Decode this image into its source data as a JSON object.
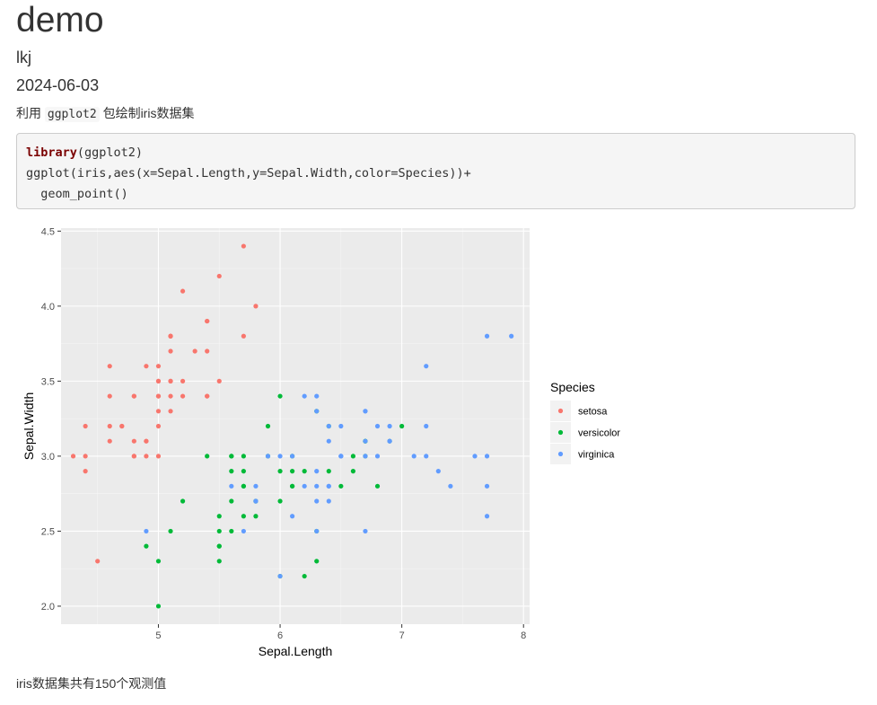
{
  "document": {
    "title": "demo",
    "author": "lkj",
    "date": "2024-06-03",
    "intro_prefix": "利用 ",
    "intro_code": "ggplot2",
    "intro_suffix": " 包绘制iris数据集",
    "code_lines": {
      "line1_keyword": "library",
      "line1_rest": "(ggplot2)",
      "line2": "ggplot(iris,aes(x=Sepal.Length,y=Sepal.Width,color=Species))+",
      "line3": "  geom_point()"
    },
    "outro": "iris数据集共有150个观测值"
  },
  "chart_data": {
    "type": "scatter",
    "title": "",
    "xlabel": "Sepal.Length",
    "ylabel": "Sepal.Width",
    "xlim": [
      4.2,
      8.05
    ],
    "ylim": [
      1.88,
      4.52
    ],
    "x_ticks": [
      5,
      6,
      7,
      8
    ],
    "y_ticks": [
      2.0,
      2.5,
      3.0,
      3.5,
      4.0,
      4.5
    ],
    "x_tick_labels": [
      "5",
      "6",
      "7",
      "8"
    ],
    "y_tick_labels": [
      "2.0",
      "2.5",
      "3.0",
      "3.5",
      "4.0",
      "4.5"
    ],
    "grid": true,
    "legend": {
      "title": "Species",
      "placement": "right"
    },
    "series": [
      {
        "name": "setosa",
        "color": "#F8766D",
        "points": [
          [
            5.1,
            3.5
          ],
          [
            4.9,
            3.0
          ],
          [
            4.7,
            3.2
          ],
          [
            4.6,
            3.1
          ],
          [
            5.0,
            3.6
          ],
          [
            5.4,
            3.9
          ],
          [
            4.6,
            3.4
          ],
          [
            5.0,
            3.4
          ],
          [
            4.4,
            2.9
          ],
          [
            4.9,
            3.1
          ],
          [
            5.4,
            3.7
          ],
          [
            4.8,
            3.4
          ],
          [
            4.8,
            3.0
          ],
          [
            4.3,
            3.0
          ],
          [
            5.8,
            4.0
          ],
          [
            5.7,
            4.4
          ],
          [
            5.4,
            3.9
          ],
          [
            5.1,
            3.5
          ],
          [
            5.7,
            3.8
          ],
          [
            5.1,
            3.8
          ],
          [
            5.4,
            3.4
          ],
          [
            5.1,
            3.7
          ],
          [
            4.6,
            3.6
          ],
          [
            5.1,
            3.3
          ],
          [
            4.8,
            3.4
          ],
          [
            5.0,
            3.0
          ],
          [
            5.0,
            3.4
          ],
          [
            5.2,
            3.5
          ],
          [
            5.2,
            3.4
          ],
          [
            4.7,
            3.2
          ],
          [
            4.8,
            3.1
          ],
          [
            5.4,
            3.4
          ],
          [
            5.2,
            4.1
          ],
          [
            5.5,
            4.2
          ],
          [
            4.9,
            3.1
          ],
          [
            5.0,
            3.2
          ],
          [
            5.5,
            3.5
          ],
          [
            4.9,
            3.6
          ],
          [
            4.4,
            3.0
          ],
          [
            5.1,
            3.4
          ],
          [
            5.0,
            3.5
          ],
          [
            4.5,
            2.3
          ],
          [
            4.4,
            3.2
          ],
          [
            5.0,
            3.5
          ],
          [
            5.1,
            3.8
          ],
          [
            4.8,
            3.0
          ],
          [
            5.1,
            3.8
          ],
          [
            4.6,
            3.2
          ],
          [
            5.3,
            3.7
          ],
          [
            5.0,
            3.3
          ]
        ]
      },
      {
        "name": "versicolor",
        "color": "#00BA38",
        "points": [
          [
            7.0,
            3.2
          ],
          [
            6.4,
            3.2
          ],
          [
            6.9,
            3.1
          ],
          [
            5.5,
            2.3
          ],
          [
            6.5,
            2.8
          ],
          [
            5.7,
            2.8
          ],
          [
            6.3,
            3.3
          ],
          [
            4.9,
            2.4
          ],
          [
            6.6,
            2.9
          ],
          [
            5.2,
            2.7
          ],
          [
            5.0,
            2.0
          ],
          [
            5.9,
            3.0
          ],
          [
            6.0,
            2.2
          ],
          [
            6.1,
            2.9
          ],
          [
            5.6,
            2.9
          ],
          [
            6.7,
            3.1
          ],
          [
            5.6,
            3.0
          ],
          [
            5.8,
            2.7
          ],
          [
            6.2,
            2.2
          ],
          [
            5.6,
            2.5
          ],
          [
            5.9,
            3.2
          ],
          [
            6.1,
            2.8
          ],
          [
            6.3,
            2.5
          ],
          [
            6.1,
            2.8
          ],
          [
            6.4,
            2.9
          ],
          [
            6.6,
            3.0
          ],
          [
            6.8,
            2.8
          ],
          [
            6.7,
            3.0
          ],
          [
            6.0,
            2.9
          ],
          [
            5.7,
            2.6
          ],
          [
            5.5,
            2.4
          ],
          [
            5.5,
            2.4
          ],
          [
            5.8,
            2.7
          ],
          [
            6.0,
            2.7
          ],
          [
            5.4,
            3.0
          ],
          [
            6.0,
            3.4
          ],
          [
            6.7,
            3.1
          ],
          [
            6.3,
            2.3
          ],
          [
            5.6,
            3.0
          ],
          [
            5.5,
            2.5
          ],
          [
            5.5,
            2.6
          ],
          [
            6.1,
            3.0
          ],
          [
            5.8,
            2.6
          ],
          [
            5.0,
            2.3
          ],
          [
            5.6,
            2.7
          ],
          [
            5.7,
            3.0
          ],
          [
            5.7,
            2.9
          ],
          [
            6.2,
            2.9
          ],
          [
            5.1,
            2.5
          ],
          [
            5.7,
            2.8
          ]
        ]
      },
      {
        "name": "virginica",
        "color": "#619CFF",
        "points": [
          [
            6.3,
            3.3
          ],
          [
            5.8,
            2.7
          ],
          [
            7.1,
            3.0
          ],
          [
            6.3,
            2.9
          ],
          [
            6.5,
            3.0
          ],
          [
            7.6,
            3.0
          ],
          [
            4.9,
            2.5
          ],
          [
            7.3,
            2.9
          ],
          [
            6.7,
            2.5
          ],
          [
            7.2,
            3.6
          ],
          [
            6.5,
            3.2
          ],
          [
            6.4,
            2.7
          ],
          [
            6.8,
            3.0
          ],
          [
            5.7,
            2.5
          ],
          [
            5.8,
            2.8
          ],
          [
            6.4,
            3.2
          ],
          [
            6.5,
            3.0
          ],
          [
            7.7,
            3.8
          ],
          [
            7.7,
            2.6
          ],
          [
            6.0,
            2.2
          ],
          [
            6.9,
            3.2
          ],
          [
            5.6,
            2.8
          ],
          [
            7.7,
            2.8
          ],
          [
            6.3,
            2.7
          ],
          [
            6.7,
            3.3
          ],
          [
            7.2,
            3.2
          ],
          [
            6.2,
            2.8
          ],
          [
            6.1,
            3.0
          ],
          [
            6.4,
            2.8
          ],
          [
            7.2,
            3.0
          ],
          [
            7.4,
            2.8
          ],
          [
            7.9,
            3.8
          ],
          [
            6.4,
            2.8
          ],
          [
            6.3,
            2.8
          ],
          [
            6.1,
            2.6
          ],
          [
            7.7,
            3.0
          ],
          [
            6.3,
            3.4
          ],
          [
            6.4,
            3.1
          ],
          [
            6.0,
            3.0
          ],
          [
            6.9,
            3.1
          ],
          [
            6.7,
            3.1
          ],
          [
            6.9,
            3.1
          ],
          [
            5.8,
            2.7
          ],
          [
            6.8,
            3.2
          ],
          [
            6.7,
            3.3
          ],
          [
            6.7,
            3.0
          ],
          [
            6.3,
            2.5
          ],
          [
            6.5,
            3.0
          ],
          [
            6.2,
            3.4
          ],
          [
            5.9,
            3.0
          ]
        ]
      }
    ]
  }
}
